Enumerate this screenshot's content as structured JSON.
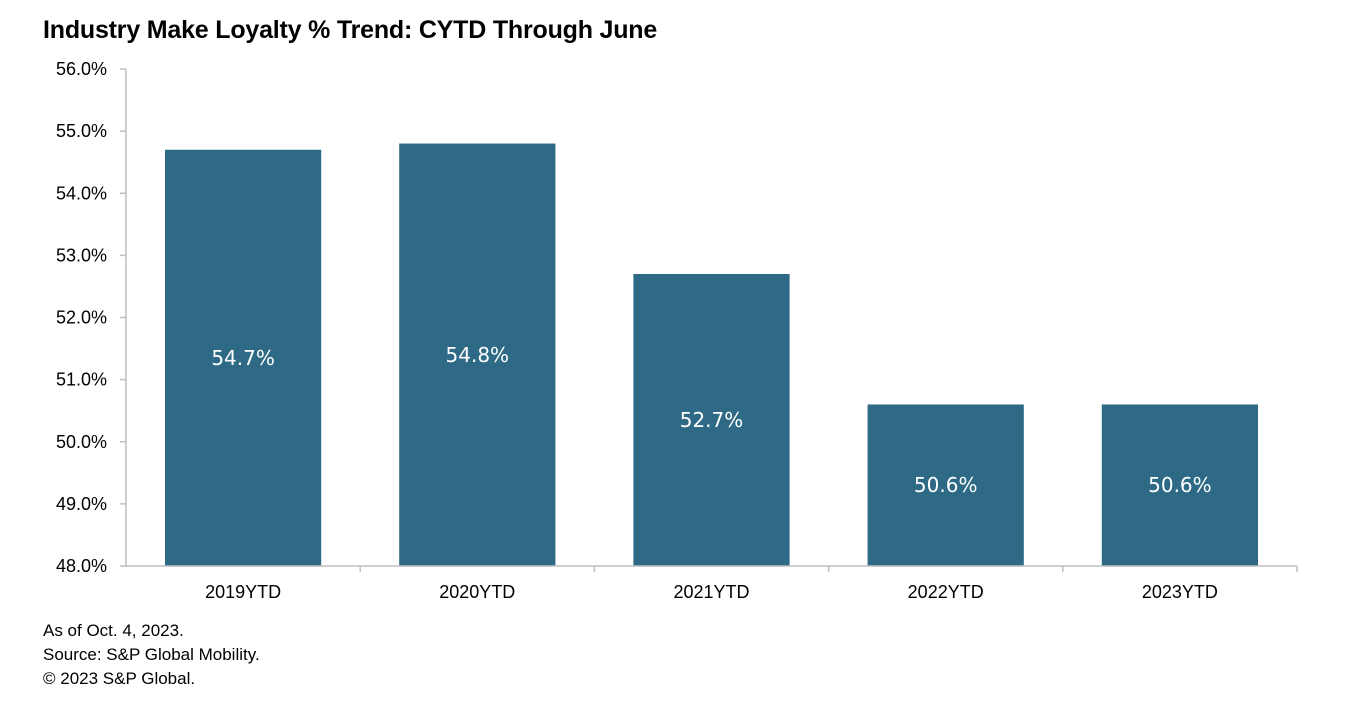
{
  "chart_data": {
    "type": "bar",
    "title": "Industry Make Loyalty % Trend: CYTD Through June",
    "xlabel": "",
    "ylabel": "",
    "categories": [
      "2019YTD",
      "2020YTD",
      "2021YTD",
      "2022YTD",
      "2023YTD"
    ],
    "values": [
      54.7,
      54.8,
      52.7,
      50.6,
      50.6
    ],
    "data_labels": [
      "54.7%",
      "54.8%",
      "52.7%",
      "50.6%",
      "50.6%"
    ],
    "ylim": [
      48.0,
      56.0
    ],
    "yticks": [
      48.0,
      49.0,
      50.0,
      51.0,
      52.0,
      53.0,
      54.0,
      55.0,
      56.0
    ],
    "ytick_labels": [
      "48.0%",
      "49.0%",
      "50.0%",
      "51.0%",
      "52.0%",
      "53.0%",
      "54.0%",
      "55.0%",
      "56.0%"
    ],
    "grid": false,
    "legend": "none",
    "bar_color": "#2e6a85",
    "label_color": "#ffffff"
  },
  "footnotes": {
    "as_of": "As of Oct. 4, 2023.",
    "source": "Source: S&P Global Mobility.",
    "copyright": "© 2023 S&P Global."
  }
}
